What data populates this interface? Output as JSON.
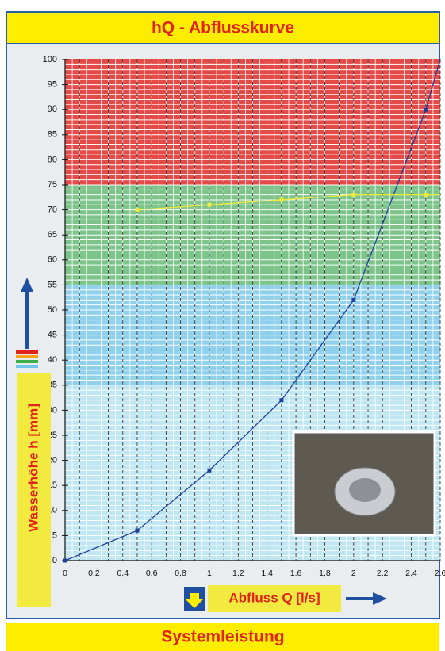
{
  "chart_data": {
    "type": "line",
    "title": "hQ - Abflusskurve",
    "xlabel": "Abfluss Q [l/s]",
    "ylabel": "Wasserhöhe h [mm]",
    "footer": "Systemleistung",
    "xlim": [
      0,
      2.6
    ],
    "ylim": [
      0,
      100
    ],
    "xticks": [
      0,
      {
        "value": 0.2,
        "label": "0,2"
      },
      {
        "value": 0.4,
        "label": "0,4"
      },
      {
        "value": 0.6,
        "label": "0,6"
      },
      {
        "value": 0.8,
        "label": "0,8"
      },
      1,
      {
        "value": 1.2,
        "label": "1,2"
      },
      {
        "value": 1.4,
        "label": "1,4"
      },
      {
        "value": 1.6,
        "label": "1,6"
      },
      {
        "value": 1.8,
        "label": "1,8"
      },
      2,
      {
        "value": 2.2,
        "label": "2,2"
      },
      {
        "value": 2.4,
        "label": "2,4"
      },
      {
        "value": 2.6,
        "label": "2,6"
      }
    ],
    "yticks": [
      0,
      5,
      10,
      15,
      20,
      25,
      30,
      35,
      40,
      45,
      50,
      55,
      60,
      65,
      70,
      75,
      80,
      85,
      90,
      95,
      100
    ],
    "bands": [
      {
        "from": 0,
        "to": 35,
        "color": "#bfe6f3"
      },
      {
        "from": 35,
        "to": 55,
        "color": "#8fd0ec"
      },
      {
        "from": 55,
        "to": 75,
        "color": "#7cc48a"
      },
      {
        "from": 75,
        "to": 100,
        "color": "#e64a47"
      }
    ],
    "series": [
      {
        "color": "#1f3f9a",
        "x": [
          0,
          0.5,
          1,
          1.5,
          2,
          2.5,
          2.6
        ],
        "values": [
          0,
          6,
          18,
          32,
          52,
          90,
          100
        ]
      },
      {
        "color": "#f2ea3a",
        "x": [
          0.5,
          1,
          1.5,
          2,
          2.5,
          2.6
        ],
        "values": [
          70,
          71,
          72,
          73,
          73,
          73
        ]
      }
    ]
  }
}
